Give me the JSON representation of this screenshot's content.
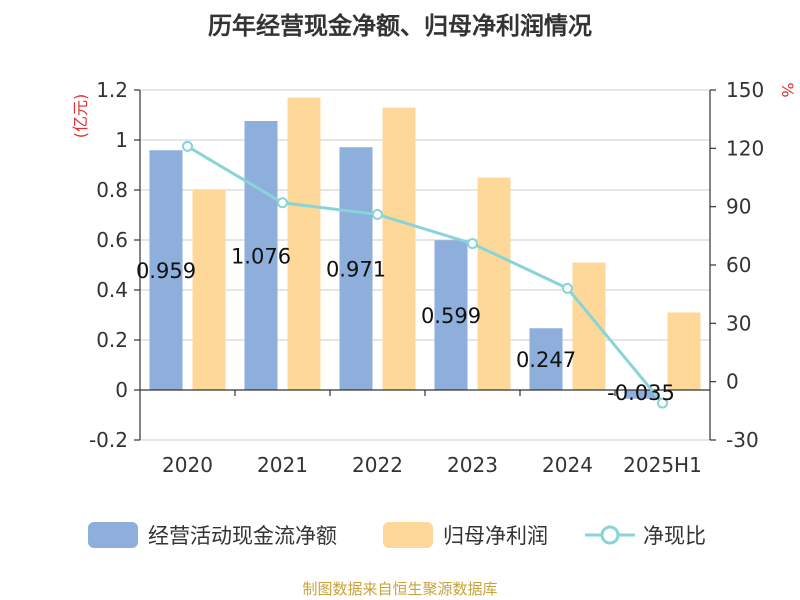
{
  "title": "历年经营现金净额、归母净利润情况",
  "source": "制图数据来自恒生聚源数据库",
  "colors": {
    "cash_flow": "#8eaedb",
    "net_profit": "#fed899",
    "ratio": "#88d4d8",
    "axis_unit": "#e03030",
    "source_text": "#c8a23a"
  },
  "chart_data": {
    "type": "bar",
    "title": "历年经营现金净额、归母净利润情况",
    "categories": [
      "2020",
      "2021",
      "2022",
      "2023",
      "2024",
      "2025H1"
    ],
    "left_axis": {
      "unit": "(亿元)",
      "ylim": [
        -0.2,
        1.2
      ],
      "ticks": [
        "1.2",
        "1",
        "0.8",
        "0.6",
        "0.4",
        "0.2",
        "0",
        "-0.2"
      ],
      "tick_values": [
        1.2,
        1.0,
        0.8,
        0.6,
        0.4,
        0.2,
        0,
        -0.2
      ]
    },
    "right_axis": {
      "unit": "%",
      "ylim": [
        -30,
        150
      ],
      "ticks": [
        "150",
        "120",
        "90",
        "60",
        "30",
        "0",
        "-30"
      ],
      "tick_values": [
        150,
        120,
        90,
        60,
        30,
        0,
        -30
      ]
    },
    "series": [
      {
        "name": "经营活动现金流净额",
        "type": "bar",
        "axis": "left",
        "values": [
          0.959,
          1.076,
          0.971,
          0.599,
          0.247,
          -0.035
        ],
        "labels": [
          "0.959",
          "1.076",
          "0.971",
          "0.599",
          "0.247",
          "-0.035"
        ]
      },
      {
        "name": "归母净利润",
        "type": "bar",
        "axis": "left",
        "values": [
          0.8,
          1.17,
          1.13,
          0.85,
          0.51,
          0.31
        ]
      },
      {
        "name": "净现比",
        "type": "line",
        "axis": "right",
        "values": [
          121,
          92,
          86,
          71,
          48,
          -11
        ]
      }
    ],
    "grid": true,
    "legend_position": "bottom"
  }
}
